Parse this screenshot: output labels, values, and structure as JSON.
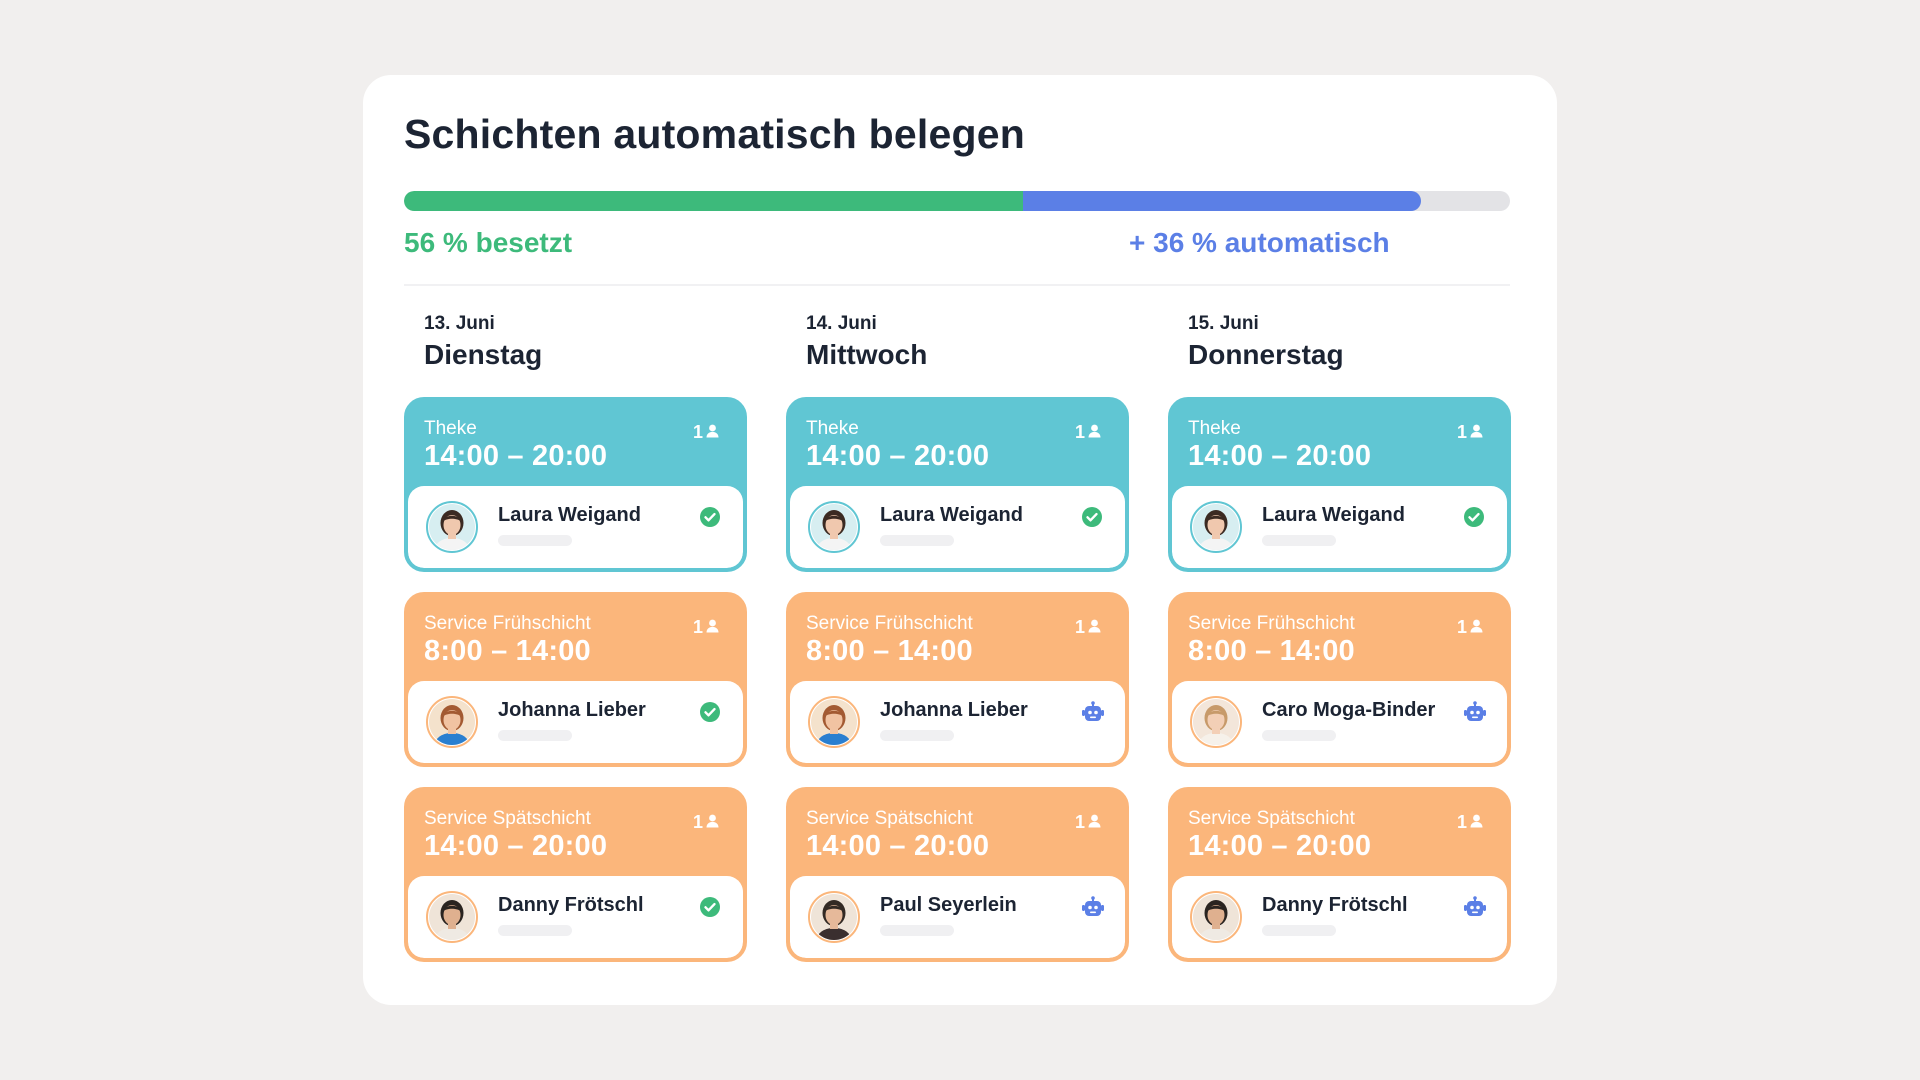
{
  "title": "Schichten automatisch belegen",
  "progress": {
    "occupied_fraction": 0.56,
    "automatic_fraction": 0.36,
    "occupied_label": "56 % besetzt",
    "automatic_label": "+ 36 % automatisch"
  },
  "colors": {
    "green": "#3dba7b",
    "blue": "#5b7fe6",
    "teal": "#60c6d3",
    "orange": "#fbb67b",
    "text": "#1c2433"
  },
  "days": [
    {
      "date": "13. Juni",
      "weekday": "Dienstag",
      "shifts": [
        {
          "name": "Theke",
          "time": "14:00 – 20:00",
          "capacity": "1",
          "color": "teal",
          "person": "Laura Weigand",
          "status": "confirmed-check-icon"
        },
        {
          "name": "Service Frühschicht",
          "time": "8:00 – 14:00",
          "capacity": "1",
          "color": "orange",
          "person": "Johanna Lieber",
          "status": "confirmed-check-icon"
        },
        {
          "name": "Service Spätschicht",
          "time": "14:00 – 20:00",
          "capacity": "1",
          "color": "orange",
          "person": "Danny Frötschl",
          "status": "confirmed-check-icon"
        }
      ]
    },
    {
      "date": "14. Juni",
      "weekday": "Mittwoch",
      "shifts": [
        {
          "name": "Theke",
          "time": "14:00 – 20:00",
          "capacity": "1",
          "color": "teal",
          "person": "Laura Weigand",
          "status": "confirmed-check-icon"
        },
        {
          "name": "Service Frühschicht",
          "time": "8:00 – 14:00",
          "capacity": "1",
          "color": "orange",
          "person": "Johanna Lieber",
          "status": "robot-icon"
        },
        {
          "name": "Service Spätschicht",
          "time": "14:00 – 20:00",
          "capacity": "1",
          "color": "orange",
          "person": "Paul Seyerlein",
          "status": "robot-icon"
        }
      ]
    },
    {
      "date": "15. Juni",
      "weekday": "Donnerstag",
      "shifts": [
        {
          "name": "Theke",
          "time": "14:00 – 20:00",
          "capacity": "1",
          "color": "teal",
          "person": "Laura Weigand",
          "status": "confirmed-check-icon"
        },
        {
          "name": "Service Frühschicht",
          "time": "8:00 – 14:00",
          "capacity": "1",
          "color": "orange",
          "person": "Caro Moga-Binder",
          "status": "robot-icon"
        },
        {
          "name": "Service Spätschicht",
          "time": "14:00 – 20:00",
          "capacity": "1",
          "color": "orange",
          "person": "Danny Frötschl",
          "status": "robot-icon"
        }
      ]
    }
  ]
}
